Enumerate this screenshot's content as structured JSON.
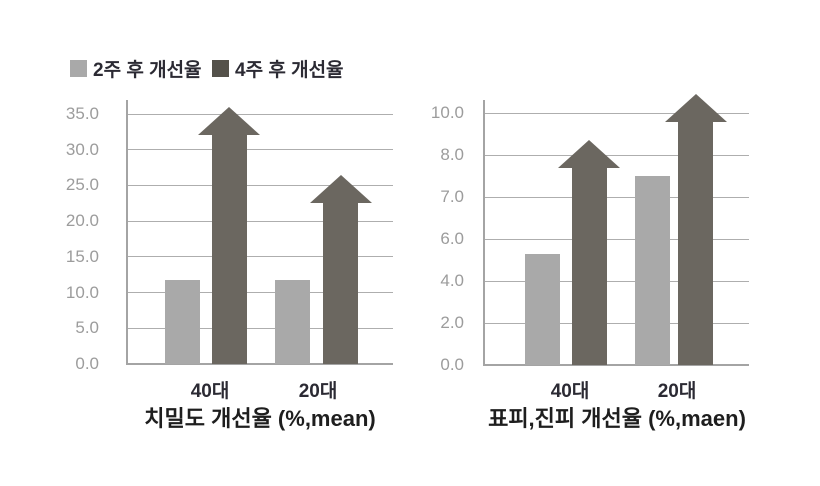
{
  "colors": {
    "series_2week": "#a9a9a9",
    "series_4week_bar": "#6b6760",
    "series_4week_legend": "#54514a",
    "gridline": "#aeaeae",
    "axis": "#a4a4a4",
    "tick_text": "#9c9c9c",
    "label_text": "#2b2a33",
    "title_text": "#1e1e1e"
  },
  "legend": {
    "items": [
      {
        "label": "2주 후 개선율",
        "color": "#a9a9a9"
      },
      {
        "label": "4주 후 개선율",
        "color": "#54514a"
      }
    ]
  },
  "chart_data": [
    {
      "type": "bar",
      "title": "치밀도 개선율 (%,mean)",
      "categories": [
        "40대",
        "20대"
      ],
      "y_axis": {
        "tick_values": [
          0,
          5,
          10,
          15,
          20,
          25,
          30,
          35
        ],
        "tick_labels": [
          "0.0",
          "5.0",
          "10.0",
          "15.0",
          "20.0",
          "25.0",
          "30.0",
          "35.0"
        ],
        "ylim": [
          0,
          35
        ],
        "grid": true
      },
      "series": [
        {
          "name": "2주 후 개선율",
          "style": "bar",
          "values": [
            11.7,
            11.7
          ]
        },
        {
          "name": "4주 후 개선율",
          "style": "arrow-bar",
          "values": [
            36.0,
            26.5
          ]
        }
      ]
    },
    {
      "type": "bar",
      "title": "표피,진피 개선율 (%,maen)",
      "categories": [
        "40대",
        "20대"
      ],
      "y_axis": {
        "tick_values": [
          0,
          2,
          4,
          6,
          7,
          8,
          10
        ],
        "tick_labels": [
          "0.0",
          "2.0",
          "4.0",
          "6.0",
          "7.0",
          "8.0",
          "10.0"
        ],
        "ylim": [
          0,
          10
        ],
        "grid": true,
        "note": "ticks equally spaced despite nonlinear values"
      },
      "series": [
        {
          "name": "2주 후 개선율",
          "style": "bar",
          "values": [
            5.3,
            7.5
          ]
        },
        {
          "name": "4주 후 개선율",
          "style": "arrow-bar",
          "values": [
            8.7,
            10.9
          ]
        }
      ]
    }
  ]
}
